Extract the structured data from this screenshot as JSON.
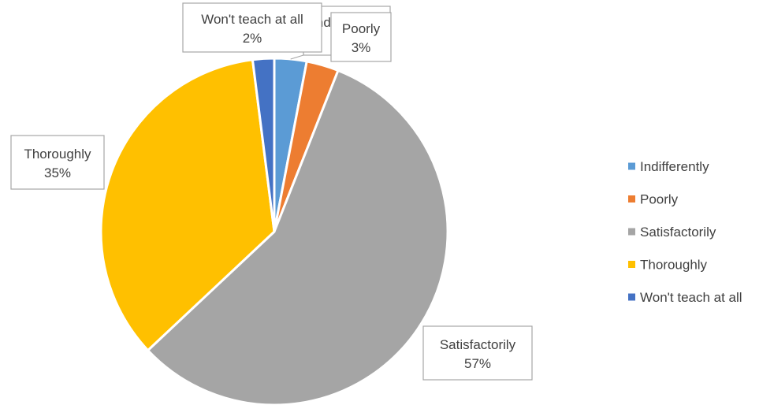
{
  "chart_data": {
    "type": "pie",
    "categories": [
      "Indifferently",
      "Poorly",
      "Satisfactorily",
      "Thoroughly",
      "Won't teach at all"
    ],
    "values": [
      3,
      3,
      57,
      35,
      2
    ],
    "value_labels": [
      "3%",
      "3%",
      "57%",
      "35%",
      "2%"
    ],
    "colors": [
      "#5B9BD5",
      "#ED7D31",
      "#A5A5A5",
      "#FFC000",
      "#4472C4"
    ],
    "legend": {
      "position": "right",
      "entries": [
        "Indifferently",
        "Poorly",
        "Satisfactorily",
        "Thoroughly",
        "Won't teach at all"
      ]
    }
  }
}
